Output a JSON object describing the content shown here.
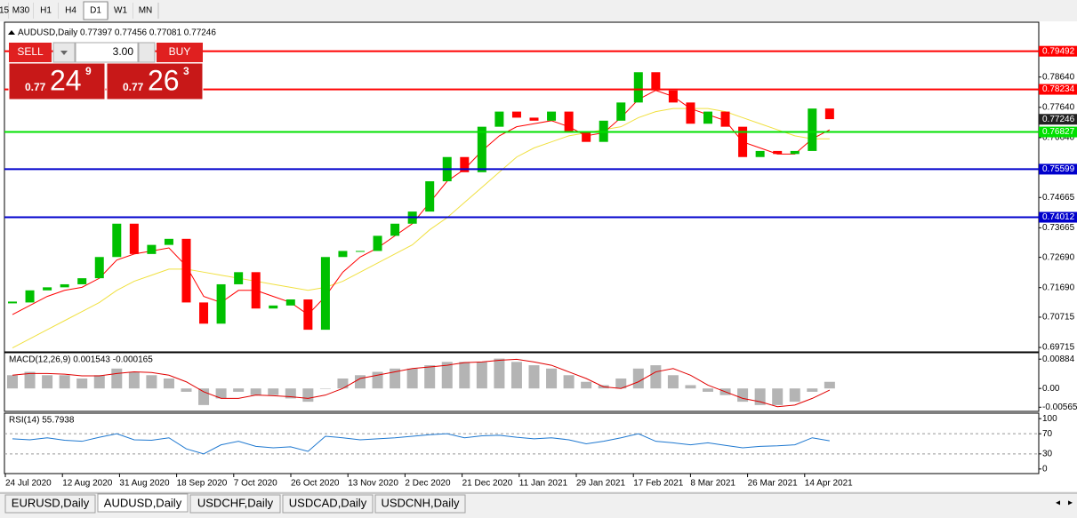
{
  "toolbar": {
    "timeframes": [
      "15",
      "M30",
      "H1",
      "H4",
      "D1",
      "W1",
      "MN"
    ],
    "active": "D1"
  },
  "chart_header": "AUDUSD,Daily  0.77397 0.77456 0.77081 0.77246",
  "trade_panel": {
    "sell": "SELL",
    "buy": "BUY",
    "lot": "3.00",
    "bid": {
      "prefix": "0.77",
      "big": "24",
      "small": "9"
    },
    "ask": {
      "prefix": "0.77",
      "big": "26",
      "small": "3"
    }
  },
  "chart_data": [
    {
      "type": "candlestick",
      "name": "AUDUSD,Daily",
      "close": [
        0.712,
        0.716,
        0.717,
        0.718,
        0.72,
        0.727,
        0.738,
        0.728,
        0.731,
        0.733,
        0.712,
        0.705,
        0.718,
        0.722,
        0.71,
        0.711,
        0.713,
        0.703,
        0.727,
        0.729,
        0.729,
        0.734,
        0.738,
        0.742,
        0.752,
        0.76,
        0.755,
        0.77,
        0.775,
        0.773,
        0.772,
        0.775,
        0.768,
        0.765,
        0.772,
        0.778,
        0.788,
        0.782,
        0.778,
        0.771,
        0.775,
        0.77,
        0.76,
        0.762,
        0.761,
        0.762,
        0.776,
        0.7725
      ],
      "up_color": "#00c000",
      "down_color": "#ff0000",
      "series": [
        {
          "color": "#ff0000",
          "values": [
            0.708,
            0.711,
            0.714,
            0.716,
            0.717,
            0.72,
            0.726,
            0.728,
            0.729,
            0.73,
            0.724,
            0.714,
            0.712,
            0.716,
            0.716,
            0.714,
            0.712,
            0.708,
            0.714,
            0.722,
            0.727,
            0.73,
            0.734,
            0.738,
            0.745,
            0.752,
            0.756,
            0.762,
            0.767,
            0.77,
            0.771,
            0.772,
            0.77,
            0.767,
            0.768,
            0.773,
            0.779,
            0.782,
            0.78,
            0.776,
            0.774,
            0.772,
            0.765,
            0.763,
            0.761,
            0.761,
            0.766,
            0.769
          ]
        },
        {
          "color": "#f0e040",
          "values": [
            0.697,
            0.7,
            0.703,
            0.706,
            0.709,
            0.712,
            0.716,
            0.719,
            0.721,
            0.723,
            0.723,
            0.722,
            0.721,
            0.72,
            0.719,
            0.718,
            0.717,
            0.716,
            0.717,
            0.719,
            0.722,
            0.725,
            0.728,
            0.731,
            0.736,
            0.74,
            0.745,
            0.75,
            0.755,
            0.76,
            0.763,
            0.765,
            0.767,
            0.768,
            0.769,
            0.77,
            0.773,
            0.775,
            0.776,
            0.776,
            0.776,
            0.775,
            0.773,
            0.771,
            0.769,
            0.767,
            0.766,
            0.766
          ]
        }
      ],
      "levels": [
        {
          "value": 0.79492,
          "color": "#ff0000"
        },
        {
          "value": 0.78234,
          "color": "#ff0000"
        },
        {
          "value": 0.76827,
          "color": "#00e000"
        },
        {
          "value": 0.75599,
          "color": "#0000cc"
        },
        {
          "value": 0.74012,
          "color": "#0000cc"
        }
      ],
      "current": 0.77246,
      "ylim": [
        0.6957,
        0.8045
      ],
      "yticks": [
        {
          "value": 0.7864,
          "label": "0.78640"
        },
        {
          "value": 0.7764,
          "label": "0.77640"
        },
        {
          "value": 0.7664,
          "label": "0.76640"
        },
        0.74665,
        0.73665,
        {
          "value": 0.7269,
          "label": "0.72690"
        },
        {
          "value": 0.7169,
          "label": "0.71690"
        },
        0.70715,
        0.69715
      ]
    },
    {
      "type": "macd",
      "title": "MACD(12,26,9) 0.001543 -0.000165",
      "hist_color": "#b4b4b4",
      "signal_color": "#e00000",
      "values": [
        0.004,
        0.005,
        0.004,
        0.004,
        0.003,
        0.004,
        0.006,
        0.005,
        0.004,
        0.003,
        -0.001,
        -0.005,
        -0.003,
        -0.001,
        -0.002,
        -0.002,
        -0.003,
        -0.004,
        0.0,
        0.003,
        0.004,
        0.005,
        0.006,
        0.006,
        0.007,
        0.008,
        0.008,
        0.008,
        0.009,
        0.008,
        0.007,
        0.006,
        0.004,
        0.002,
        0.001,
        0.003,
        0.006,
        0.007,
        0.004,
        0.001,
        -0.001,
        -0.002,
        -0.004,
        -0.005,
        -0.005,
        -0.004,
        -0.001,
        0.002
      ],
      "signal": [
        0.004,
        0.0045,
        0.0045,
        0.0043,
        0.0038,
        0.0038,
        0.0045,
        0.005,
        0.0048,
        0.004,
        0.002,
        -0.001,
        -0.003,
        -0.003,
        -0.002,
        -0.0022,
        -0.0025,
        -0.003,
        -0.002,
        0.0,
        0.003,
        0.004,
        0.005,
        0.006,
        0.0065,
        0.007,
        0.0078,
        0.008,
        0.0085,
        0.0088,
        0.008,
        0.007,
        0.005,
        0.003,
        0.0005,
        0.0,
        0.002,
        0.005,
        0.006,
        0.004,
        0.001,
        -0.001,
        -0.003,
        -0.004,
        -0.0055,
        -0.005,
        -0.003,
        -0.0005
      ],
      "ylim": [
        -0.00691,
        0.01077
      ],
      "yticks": [
        0.00884,
        {
          "value": 0,
          "label": "0.00"
        },
        -0.005651
      ]
    },
    {
      "type": "line",
      "title": "RSI(14) 55.7938",
      "color": "#1e78d0",
      "values": [
        60,
        58,
        62,
        57,
        55,
        63,
        70,
        58,
        57,
        62,
        40,
        30,
        48,
        55,
        45,
        42,
        44,
        35,
        65,
        62,
        58,
        60,
        62,
        65,
        68,
        70,
        62,
        66,
        67,
        63,
        60,
        62,
        58,
        50,
        55,
        62,
        70,
        55,
        52,
        48,
        52,
        47,
        42,
        45,
        46,
        48,
        62,
        56
      ],
      "levels": [
        70,
        30
      ],
      "ylim": [
        -9.1,
        110.9
      ],
      "yticks": [
        100,
        70,
        30,
        0
      ]
    }
  ],
  "date_labels": [
    "24 Jul 2020",
    "12 Aug 2020",
    "31 Aug 2020",
    "18 Sep 2020",
    "7 Oct 2020",
    "26 Oct 2020",
    "13 Nov 2020",
    "2 Dec 2020",
    "21 Dec 2020",
    "11 Jan 2021",
    "29 Jan 2021",
    "17 Feb 2021",
    "8 Mar 2021",
    "26 Mar 2021",
    "14 Apr 2021"
  ],
  "tabs": {
    "items": [
      "EURUSD,Daily",
      "AUDUSD,Daily",
      "USDCHF,Daily",
      "USDCAD,Daily",
      "USDCNH,Daily"
    ],
    "active": "AUDUSD,Daily"
  }
}
